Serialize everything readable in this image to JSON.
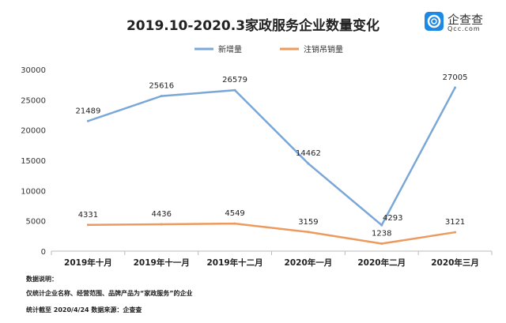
{
  "title": "2019.10-2020.3家政服务企业数量变化",
  "logo": {
    "name": "企查查",
    "sub": "Qcc.com",
    "color": "#1e88e5"
  },
  "notes": {
    "heading": "数据说明：",
    "line1": "仅统计企业名称、经营范围、品牌产品为“家政服务”的企业",
    "line2": "统计截至 2020/4/24    数据来源：企查查"
  },
  "chart_data": {
    "type": "line",
    "categories": [
      "2019年十月",
      "2019年十一月",
      "2019年十二月",
      "2020年一月",
      "2020年二月",
      "2020年三月"
    ],
    "series": [
      {
        "name": "新增量",
        "values": [
          21489,
          25616,
          26579,
          14462,
          4293,
          27005
        ],
        "color": "#7ba7d7"
      },
      {
        "name": "注销吊销量",
        "values": [
          4331,
          4436,
          4549,
          3159,
          1238,
          3121
        ],
        "color": "#ec9a5e"
      }
    ],
    "ylim": [
      0,
      30000
    ],
    "yticks": [
      0,
      5000,
      10000,
      15000,
      20000,
      25000,
      30000
    ],
    "grid": false,
    "legend": "top"
  }
}
